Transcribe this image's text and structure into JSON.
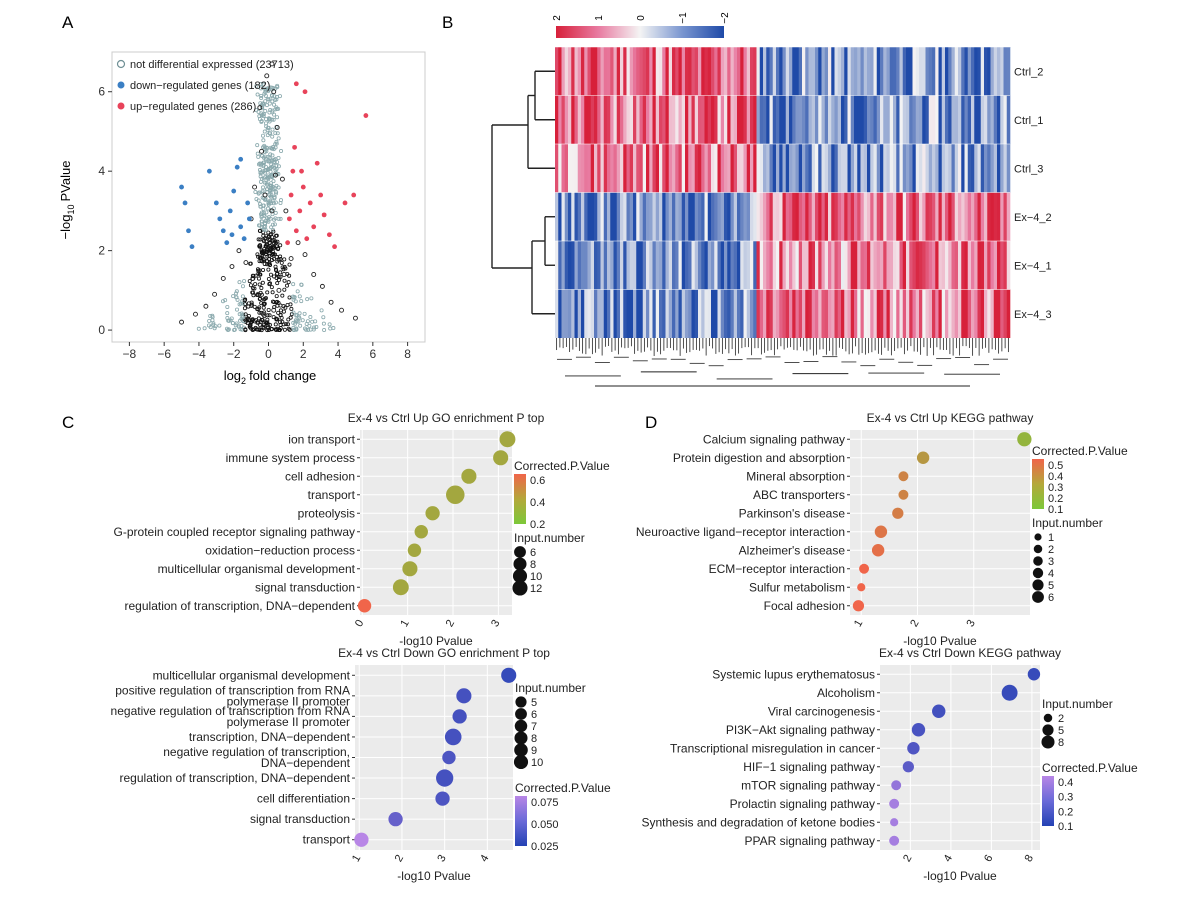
{
  "colors": {
    "panel_bg": "#ebebeb",
    "grid": "#ffffff",
    "not_diff": "#6f8f94",
    "down": "#3b7fc4",
    "up": "#e8435a",
    "heat_high": "#d7203a",
    "heat_mid": "#f4f4f4",
    "heat_low": "#1f4aa8"
  },
  "panels": {
    "A": {
      "letter": "A",
      "ylabel_main": "−log",
      "ylabel_sub": "10",
      "ylabel_tail": "PValue",
      "xlabel_main": "log",
      "xlabel_sub": "2",
      "xlabel_tail": "fold change",
      "legend": [
        {
          "label": "not differential expressed (23713)",
          "color": "not_diff"
        },
        {
          "label": "down−regulated genes (182)",
          "color": "down"
        },
        {
          "label": "up−regulated genes (286)",
          "color": "up"
        }
      ]
    },
    "B": {
      "letter": "B",
      "colorbar_ticks": [
        "2",
        "1",
        "0",
        "−1",
        "−2"
      ],
      "rows": [
        "Ctrl_2",
        "Ctrl_1",
        "Ctrl_3",
        "Ex−4_2",
        "Ex−4_1",
        "Ex−4_3"
      ]
    },
    "C": {
      "letter": "C"
    },
    "D": {
      "letter": "D"
    }
  },
  "chart_data": [
    {
      "id": "volcano",
      "type": "scatter",
      "xlabel": "log2 fold change",
      "ylabel": "−log10 PValue",
      "xlim": [
        -9,
        9
      ],
      "ylim": [
        -0.3,
        7
      ],
      "xticks": [
        -8,
        -6,
        -4,
        -2,
        0,
        2,
        4,
        6,
        8
      ],
      "yticks": [
        0,
        2,
        4,
        6
      ],
      "series": [
        {
          "name": "not differential expressed (23713)",
          "style": "open",
          "color": "not_diff",
          "points": [
            [
              0,
              0.05
            ],
            [
              -0.3,
              0.4
            ],
            [
              0.3,
              0.5
            ],
            [
              -0.6,
              0.9
            ],
            [
              0.6,
              1.0
            ],
            [
              -0.9,
              1.3
            ],
            [
              0.9,
              1.4
            ],
            [
              -1.3,
              1.7
            ],
            [
              1.3,
              1.8
            ],
            [
              -1.7,
              2.0
            ],
            [
              1.7,
              2.2
            ],
            [
              -2.1,
              1.6
            ],
            [
              2.1,
              1.9
            ],
            [
              -2.6,
              1.3
            ],
            [
              2.6,
              1.4
            ],
            [
              -3.1,
              0.9
            ],
            [
              3.1,
              1.1
            ],
            [
              -3.6,
              0.6
            ],
            [
              3.6,
              0.7
            ],
            [
              -4.2,
              0.4
            ],
            [
              4.2,
              0.5
            ],
            [
              -5,
              0.2
            ],
            [
              5,
              0.3
            ],
            [
              0.2,
              3.0
            ],
            [
              -0.2,
              3.4
            ],
            [
              0.4,
              3.9
            ],
            [
              -0.4,
              4.5
            ],
            [
              0.5,
              5.1
            ],
            [
              -0.5,
              5.6
            ],
            [
              0.3,
              6.0
            ],
            [
              -0.1,
              6.4
            ],
            [
              0.2,
              6.7
            ],
            [
              -1.0,
              2.8
            ],
            [
              1.0,
              3.0
            ],
            [
              -0.8,
              3.6
            ],
            [
              0.8,
              3.8
            ]
          ]
        },
        {
          "name": "down−regulated genes (182)",
          "style": "filled",
          "color": "down",
          "points": [
            [
              -5.0,
              3.6
            ],
            [
              -4.8,
              3.2
            ],
            [
              -4.6,
              2.5
            ],
            [
              -4.4,
              2.1
            ],
            [
              -3.4,
              4.0
            ],
            [
              -3.0,
              3.2
            ],
            [
              -2.8,
              2.8
            ],
            [
              -2.6,
              2.5
            ],
            [
              -2.4,
              2.2
            ],
            [
              -2.2,
              3.0
            ],
            [
              -2.0,
              3.5
            ],
            [
              -1.8,
              4.1
            ],
            [
              -1.6,
              2.6
            ],
            [
              -1.4,
              2.3
            ],
            [
              -1.2,
              3.2
            ],
            [
              -1.1,
              2.8
            ],
            [
              -1.6,
              4.3
            ],
            [
              -2.1,
              2.4
            ]
          ]
        },
        {
          "name": "up−regulated genes (286)",
          "style": "filled",
          "color": "up",
          "points": [
            [
              1.1,
              2.2
            ],
            [
              1.2,
              2.8
            ],
            [
              1.3,
              3.4
            ],
            [
              1.4,
              4.0
            ],
            [
              1.5,
              4.6
            ],
            [
              1.6,
              2.5
            ],
            [
              1.8,
              3.0
            ],
            [
              2.0,
              3.6
            ],
            [
              2.2,
              2.3
            ],
            [
              2.4,
              3.2
            ],
            [
              2.6,
              2.6
            ],
            [
              3.0,
              3.4
            ],
            [
              3.2,
              2.9
            ],
            [
              3.5,
              2.4
            ],
            [
              3.8,
              2.1
            ],
            [
              4.4,
              3.2
            ],
            [
              4.9,
              3.4
            ],
            [
              5.6,
              5.4
            ],
            [
              2.1,
              6.0
            ],
            [
              1.6,
              6.2
            ],
            [
              2.8,
              4.2
            ],
            [
              1.9,
              4.0
            ]
          ]
        }
      ]
    },
    {
      "id": "go_up",
      "type": "scatter",
      "title": "Ex-4 vs Ctrl Up GO enrichment P top",
      "xlabel": "-log10 Pvalue",
      "xlim": [
        -0.05,
        3.3
      ],
      "xticks": [
        0,
        1,
        2,
        3
      ],
      "categories": [
        "ion transport",
        "immune system process",
        "cell adhesion",
        "transport",
        "proteolysis",
        "G-protein coupled receptor signaling pathway",
        "oxidation−reduction process",
        "multicellular organismal development",
        "signal transduction",
        "regulation of transcription, DNA−dependent"
      ],
      "x": [
        3.2,
        3.05,
        2.35,
        2.05,
        1.55,
        1.3,
        1.15,
        1.05,
        0.85,
        0.05
      ],
      "size": [
        8,
        7,
        7,
        12,
        6,
        5,
        5,
        7,
        8,
        5
      ],
      "p_adj": [
        0.2,
        0.2,
        0.2,
        0.2,
        0.2,
        0.2,
        0.2,
        0.2,
        0.2,
        0.6
      ],
      "color_legend": {
        "title": "Corrected.P.Value",
        "ticks": [
          "0.6",
          "0.4",
          "0.2"
        ]
      },
      "size_legend": {
        "title": "Input.number",
        "ticks": [
          "6",
          "8",
          "10",
          "12"
        ]
      }
    },
    {
      "id": "kegg_up",
      "type": "scatter",
      "title": "Ex-4 vs Ctrl Up KEGG pathway",
      "xlabel": "-log10 Pvalue",
      "xlim": [
        0.8,
        4.0
      ],
      "xticks": [
        1,
        2,
        3
      ],
      "categories": [
        "Calcium signaling pathway",
        "Protein digestion and absorption",
        "Mineral absorption",
        "ABC transporters",
        "Parkinson's disease",
        "Neuroactive ligand−receptor interaction",
        "Alzheimer's disease",
        "ECM−receptor interaction",
        "Sulfur metabolism",
        "Focal adhesion"
      ],
      "x": [
        3.9,
        2.1,
        1.75,
        1.75,
        1.65,
        1.35,
        1.3,
        1.05,
        1.0,
        0.95
      ],
      "size": [
        6,
        4,
        2,
        2,
        3,
        4,
        4,
        2,
        1,
        3
      ],
      "p_adj": [
        0.1,
        0.25,
        0.35,
        0.35,
        0.38,
        0.42,
        0.45,
        0.5,
        0.52,
        0.52
      ],
      "color_legend": {
        "title": "Corrected.P.Value",
        "ticks": [
          "0.5",
          "0.4",
          "0.3",
          "0.2",
          "0.1"
        ]
      },
      "size_legend": {
        "title": "Input.number",
        "ticks": [
          "1",
          "2",
          "3",
          "4",
          "5",
          "6"
        ]
      }
    },
    {
      "id": "go_down",
      "type": "scatter",
      "title": "Ex-4 vs Ctrl Down GO enrichment P top",
      "xlabel": "-log10 Pvalue",
      "xlim": [
        0.9,
        4.6
      ],
      "xticks": [
        1,
        2,
        3,
        4
      ],
      "categories": [
        "multicellular organismal development",
        "positive regulation of transcription from RNA polymerase II promoter",
        "negative regulation of transcription from RNA polymerase II promoter",
        "transcription, DNA−dependent",
        "negative regulation of transcription, DNA−dependent",
        "regulation of transcription, DNA−dependent",
        "cell differentiation",
        "signal transduction",
        "transport"
      ],
      "x": [
        4.5,
        3.45,
        3.35,
        3.2,
        3.1,
        3.0,
        2.95,
        1.85,
        1.05
      ],
      "size": [
        7,
        7,
        6,
        9,
        5,
        10,
        6,
        6,
        6
      ],
      "p_adj": [
        0.01,
        0.02,
        0.02,
        0.02,
        0.025,
        0.02,
        0.025,
        0.04,
        0.09
      ],
      "color_legend": {
        "title": "Corrected.P.Value",
        "ticks": [
          "0.075",
          "0.050",
          "0.025"
        ]
      },
      "size_legend": {
        "title": "Input.number",
        "ticks": [
          "5",
          "6",
          "7",
          "8",
          "9",
          "10"
        ]
      }
    },
    {
      "id": "kegg_down",
      "type": "scatter",
      "title": "Ex-4 vs Ctrl Down KEGG pathway",
      "xlabel": "-log10 Pvalue",
      "xlim": [
        0.5,
        8.4
      ],
      "xticks": [
        2,
        4,
        6,
        8
      ],
      "categories": [
        "Systemic lupus erythematosus",
        "Alcoholism",
        "Viral carcinogenesis",
        "PI3K−Akt signaling pathway",
        "Transcriptional misregulation in cancer",
        "HIF−1 signaling pathway",
        "mTOR signaling pathway",
        "Prolactin signaling pathway",
        "Synthesis and degradation of ketone bodies",
        "PPAR signaling pathway"
      ],
      "x": [
        8.1,
        6.9,
        3.4,
        2.4,
        2.15,
        1.9,
        1.3,
        1.2,
        1.2,
        1.2
      ],
      "size": [
        4,
        8,
        5,
        5,
        4,
        3,
        2,
        2,
        1,
        2
      ],
      "p_adj": [
        0.05,
        0.05,
        0.08,
        0.1,
        0.12,
        0.15,
        0.3,
        0.35,
        0.35,
        0.35
      ],
      "color_legend": {
        "title": "Corrected.P.Value",
        "ticks": [
          "0.4",
          "0.3",
          "0.2",
          "0.1"
        ]
      },
      "size_legend": {
        "title": "Input.number",
        "ticks": [
          "2",
          "5",
          "8"
        ]
      }
    }
  ]
}
